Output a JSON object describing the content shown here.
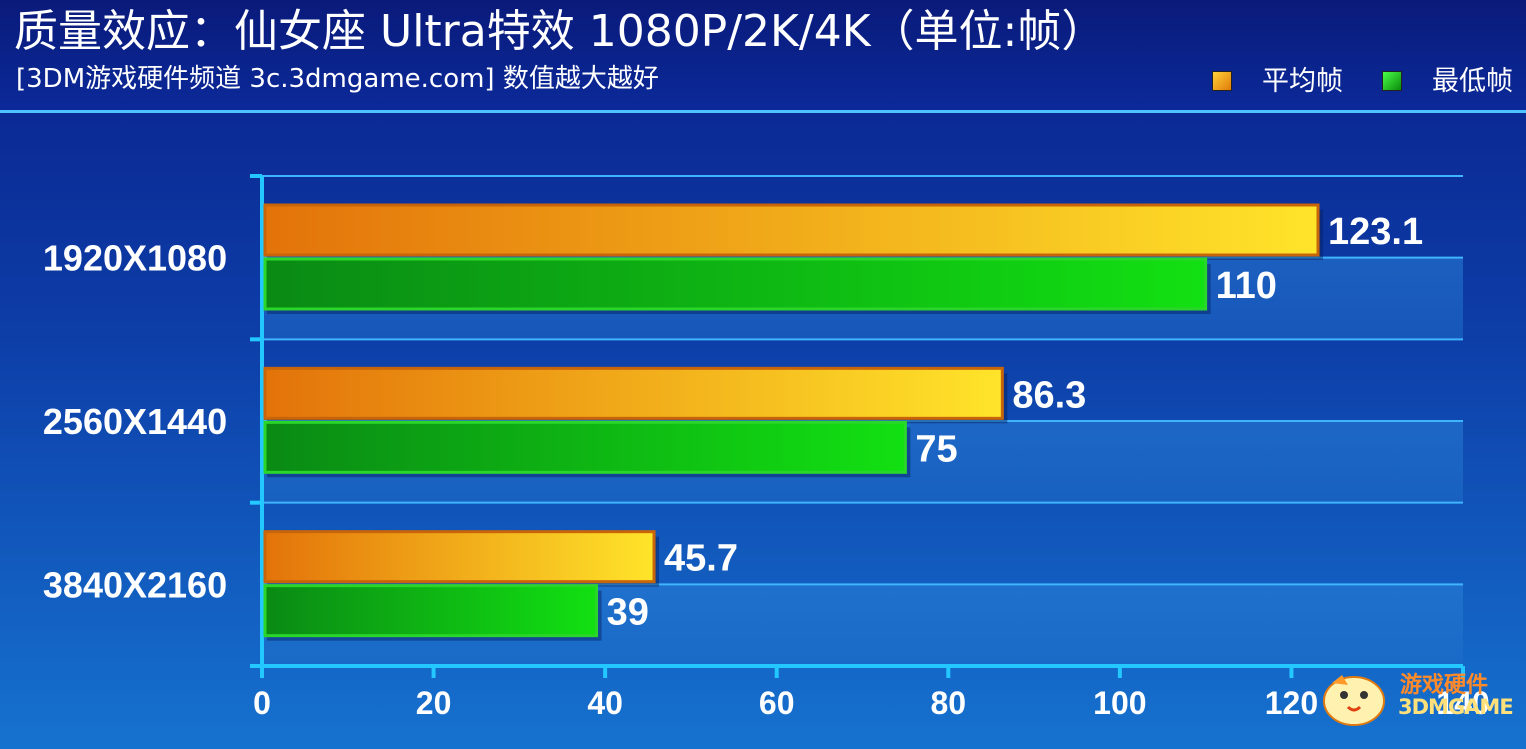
{
  "header": {
    "title": "质量效应：仙女座 Ultra特效 1080P/2K/4K（单位:帧）",
    "subtitle": "[3DM游戏硬件频道 3c.3dmgame.com] 数值越大越好"
  },
  "legend": [
    {
      "label": "平均帧",
      "color": "#f3a21a"
    },
    {
      "label": "最低帧",
      "color": "#17b81a"
    }
  ],
  "watermark": {
    "line1": "游戏硬件",
    "line2": "3DMGAME"
  },
  "chart_data": {
    "type": "bar",
    "orientation": "horizontal",
    "categories": [
      "1920X1080",
      "2560X1440",
      "3840X2160"
    ],
    "series": [
      {
        "name": "平均帧",
        "values": [
          123.1,
          86.3,
          45.7
        ],
        "color": "#f3a21a"
      },
      {
        "name": "最低帧",
        "values": [
          110,
          75,
          39
        ],
        "color": "#17b81a"
      }
    ],
    "data_labels": [
      [
        "123.1",
        "86.3",
        "45.7"
      ],
      [
        "110",
        "75",
        "39"
      ]
    ],
    "xlim": [
      0,
      140
    ],
    "x_ticks": [
      "0",
      "20",
      "40",
      "60",
      "80",
      "100",
      "120",
      "140"
    ],
    "grid": true,
    "legend_position": "top-right"
  }
}
